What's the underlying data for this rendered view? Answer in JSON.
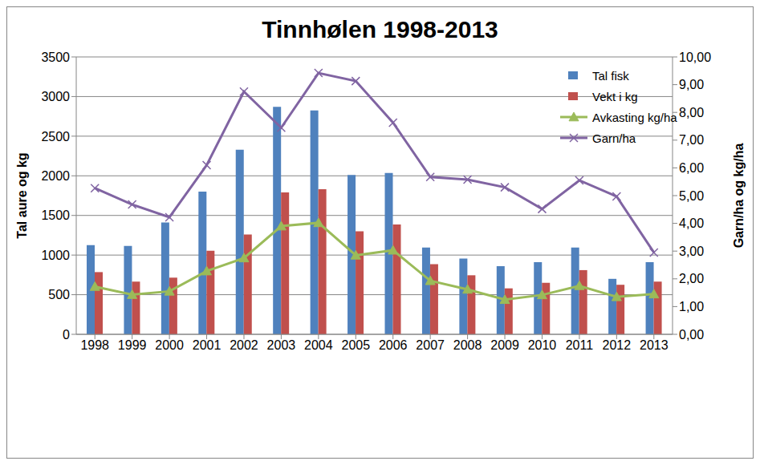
{
  "chart_data": {
    "type": "bar",
    "title": "Tinnhølen 1998-2013",
    "categories": [
      "1998",
      "1999",
      "2000",
      "2001",
      "2002",
      "2003",
      "2004",
      "2005",
      "2006",
      "2007",
      "2008",
      "2009",
      "2010",
      "2011",
      "2012",
      "2013"
    ],
    "y_label": "Tal aure og kg",
    "y2_label": "Garn/ha og kg/ha",
    "ylim": [
      0,
      3500
    ],
    "yticks": [
      0,
      500,
      1000,
      1500,
      2000,
      2500,
      3000,
      3500
    ],
    "y2lim": [
      0,
      10
    ],
    "y2ticks": [
      {
        "value": 0,
        "label": "0,00"
      },
      {
        "value": 1,
        "label": "1,00"
      },
      {
        "value": 2,
        "label": "2,00"
      },
      {
        "value": 3,
        "label": "3,00"
      },
      {
        "value": 4,
        "label": "4,00"
      },
      {
        "value": 5,
        "label": "5,00"
      },
      {
        "value": 6,
        "label": "6,00"
      },
      {
        "value": 7,
        "label": "7,00"
      },
      {
        "value": 8,
        "label": "8,00"
      },
      {
        "value": 9,
        "label": "9,00"
      },
      {
        "value": 10,
        "label": "10,00"
      }
    ],
    "grid": true,
    "legend": "upper right",
    "series": [
      {
        "name": "Tal fisk",
        "type": "bar",
        "color": "#4f81bd",
        "values": [
          1125,
          1115,
          1410,
          1800,
          2330,
          2870,
          2825,
          2010,
          2035,
          1095,
          955,
          860,
          910,
          1095,
          700,
          910
        ]
      },
      {
        "name": "Vekt i kg",
        "type": "bar",
        "color": "#c0504d",
        "values": [
          785,
          665,
          715,
          1055,
          1260,
          1790,
          1830,
          1300,
          1385,
          885,
          745,
          580,
          650,
          810,
          625,
          665
        ]
      },
      {
        "name": "Avkasting kg/ha",
        "type": "line",
        "axis": "y2",
        "marker": "triangle",
        "color": "#9bbb59",
        "values": [
          1.72,
          1.43,
          1.55,
          2.28,
          2.75,
          3.9,
          4.02,
          2.85,
          3.03,
          1.93,
          1.62,
          1.25,
          1.42,
          1.75,
          1.35,
          1.45
        ]
      },
      {
        "name": "Garn/ha",
        "type": "line",
        "axis": "y2",
        "marker": "x",
        "color": "#8064a2",
        "values": [
          5.27,
          4.68,
          4.22,
          6.1,
          8.75,
          7.45,
          9.42,
          9.13,
          7.63,
          5.67,
          5.58,
          5.3,
          4.52,
          5.55,
          4.97,
          2.95
        ]
      }
    ]
  }
}
